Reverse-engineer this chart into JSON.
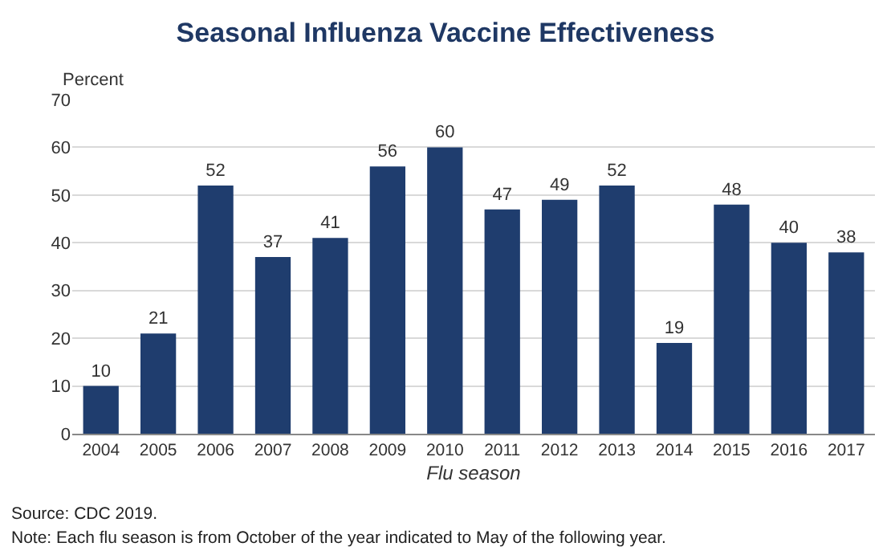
{
  "chart_data": {
    "type": "bar",
    "title": "Seasonal Influenza Vaccine Effectiveness",
    "ylabel": "Percent",
    "xlabel": "Flu season",
    "categories": [
      "2004",
      "2005",
      "2006",
      "2007",
      "2008",
      "2009",
      "2010",
      "2011",
      "2012",
      "2013",
      "2014",
      "2015",
      "2016",
      "2017"
    ],
    "values": [
      10,
      21,
      52,
      37,
      41,
      56,
      60,
      47,
      49,
      52,
      19,
      48,
      40,
      38
    ],
    "color": "#1f3d6e",
    "ylim": [
      0,
      70
    ],
    "yticks": [
      0,
      10,
      20,
      30,
      40,
      50,
      60,
      70
    ],
    "grid": "y",
    "data_labels": true,
    "annotations": [
      "Source: CDC 2019.",
      "Note: Each flu season is from October of the year indicated to May of the following year."
    ]
  }
}
